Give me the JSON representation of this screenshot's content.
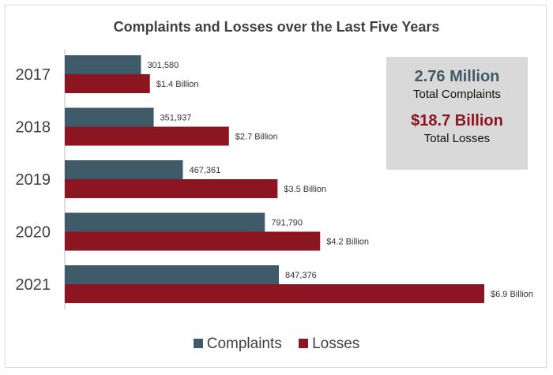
{
  "chart_data": {
    "type": "bar",
    "orientation": "horizontal",
    "title": "Complaints and Losses over the Last Five Years",
    "categories": [
      "2017",
      "2018",
      "2019",
      "2020",
      "2021"
    ],
    "series": [
      {
        "name": "Complaints",
        "color": "#3f5a68",
        "values": [
          301580,
          351937,
          467361,
          791790,
          847376
        ],
        "labels": [
          "301,580",
          "351,937",
          "467,361",
          "791,790",
          "847,376"
        ]
      },
      {
        "name": "Losses",
        "color": "#8b1520",
        "values": [
          1.4,
          2.7,
          3.5,
          4.2,
          6.9
        ],
        "labels": [
          "$1.4 Billion",
          "$2.7 Billion",
          "$3.5 Billion",
          "$4.2 Billion",
          "$6.9 Billion"
        ]
      }
    ],
    "xlabel": "",
    "ylabel": "",
    "legend_position": "bottom"
  },
  "summary": {
    "complaints_value": "2.76 Million",
    "complaints_label": "Total Complaints",
    "complaints_color": "#3f5a68",
    "losses_value": "$18.7 Billion",
    "losses_label": "Total Losses",
    "losses_color": "#8b1520"
  }
}
